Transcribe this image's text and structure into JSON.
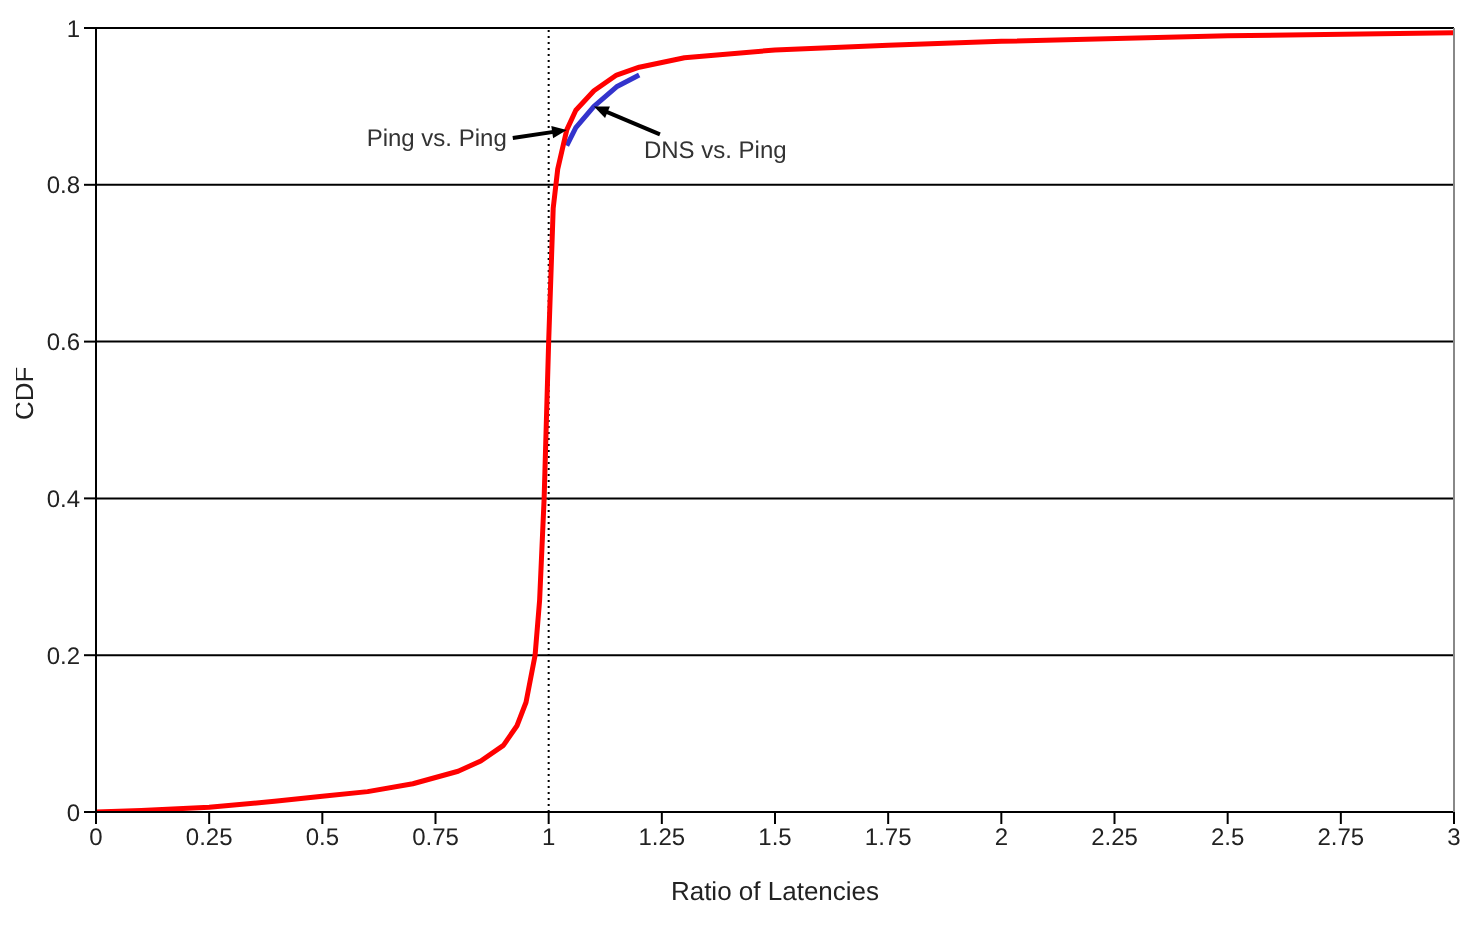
{
  "chart_data": {
    "type": "line",
    "xlabel": "Ratio of Latencies",
    "ylabel": "CDF",
    "xlim": [
      0,
      3
    ],
    "xticks": [
      0,
      0.25,
      0.5,
      0.75,
      1,
      1.25,
      1.5,
      1.75,
      2,
      2.25,
      2.5,
      2.75,
      3
    ],
    "ylim": [
      0,
      1
    ],
    "yticks": [
      0,
      0.2,
      0.4,
      0.6,
      0.8,
      1
    ],
    "grid": "y",
    "legend": false,
    "marker": "none",
    "line_style": "solid",
    "series": [
      {
        "name": "DNS vs. Ping",
        "color": "#3333cc",
        "x": [
          1.04,
          1.06,
          1.1,
          1.15,
          1.2
        ],
        "values": [
          0.85,
          0.873,
          0.9,
          0.925,
          0.94
        ]
      },
      {
        "name": "Ping vs. Ping",
        "color": "#ff0000",
        "x": [
          0,
          0.1,
          0.25,
          0.4,
          0.5,
          0.6,
          0.7,
          0.8,
          0.85,
          0.9,
          0.93,
          0.95,
          0.97,
          0.98,
          0.99,
          1,
          1.01,
          1.02,
          1.04,
          1.06,
          1.1,
          1.15,
          1.2,
          1.3,
          1.5,
          1.75,
          2,
          2.5,
          3
        ],
        "values": [
          0,
          0.002,
          0.006,
          0.014,
          0.02,
          0.026,
          0.036,
          0.052,
          0.065,
          0.085,
          0.11,
          0.14,
          0.2,
          0.27,
          0.4,
          0.6,
          0.77,
          0.82,
          0.87,
          0.895,
          0.92,
          0.94,
          0.95,
          0.962,
          0.972,
          0.978,
          0.983,
          0.99,
          0.994
        ]
      }
    ],
    "ref_lines": [
      {
        "axis": "x",
        "value": 1,
        "color": "#000000",
        "line_style": "dotted"
      }
    ]
  }
}
